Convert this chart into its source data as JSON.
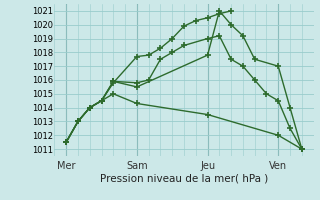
{
  "title": "Pression niveau de la mer( hPa )",
  "bg_color": "#cce8e8",
  "grid_color": "#99cccc",
  "line_color": "#2d6b2d",
  "ylim": [
    1010.5,
    1021.5
  ],
  "yticks": [
    1011,
    1012,
    1013,
    1014,
    1015,
    1016,
    1017,
    1018,
    1019,
    1020,
    1021
  ],
  "day_labels": [
    "Mer",
    "Sam",
    "Jeu",
    "Ven"
  ],
  "day_positions": [
    0,
    30,
    60,
    90
  ],
  "xlim": [
    -5,
    105
  ],
  "series": [
    {
      "x": [
        0,
        5,
        10,
        15,
        20,
        30,
        35,
        40,
        45,
        50,
        55,
        60,
        65,
        70
      ],
      "y": [
        1011.5,
        1013.0,
        1014.0,
        1014.5,
        1015.8,
        1017.7,
        1017.8,
        1018.3,
        1019.0,
        1019.9,
        1020.3,
        1020.5,
        1020.8,
        1021.0
      ]
    },
    {
      "x": [
        0,
        5,
        10,
        15,
        20,
        30,
        35,
        40,
        45,
        50,
        60,
        65,
        70,
        75,
        80,
        85,
        90,
        95,
        100
      ],
      "y": [
        1011.5,
        1013.0,
        1014.0,
        1014.5,
        1015.9,
        1015.8,
        1016.0,
        1017.5,
        1018.0,
        1018.5,
        1019.0,
        1019.2,
        1017.5,
        1017.0,
        1016.0,
        1015.0,
        1014.5,
        1012.5,
        1011.0
      ]
    },
    {
      "x": [
        0,
        5,
        10,
        15,
        20,
        30,
        60,
        65,
        70,
        75,
        80,
        90,
        95,
        100
      ],
      "y": [
        1011.5,
        1013.0,
        1014.0,
        1014.5,
        1015.9,
        1015.5,
        1017.8,
        1021.0,
        1020.0,
        1019.2,
        1017.5,
        1017.0,
        1014.0,
        1011.0
      ]
    },
    {
      "x": [
        0,
        5,
        10,
        15,
        20,
        30,
        60,
        90,
        100
      ],
      "y": [
        1011.5,
        1013.0,
        1014.0,
        1014.5,
        1015.0,
        1014.3,
        1013.5,
        1012.0,
        1011.0
      ]
    }
  ]
}
